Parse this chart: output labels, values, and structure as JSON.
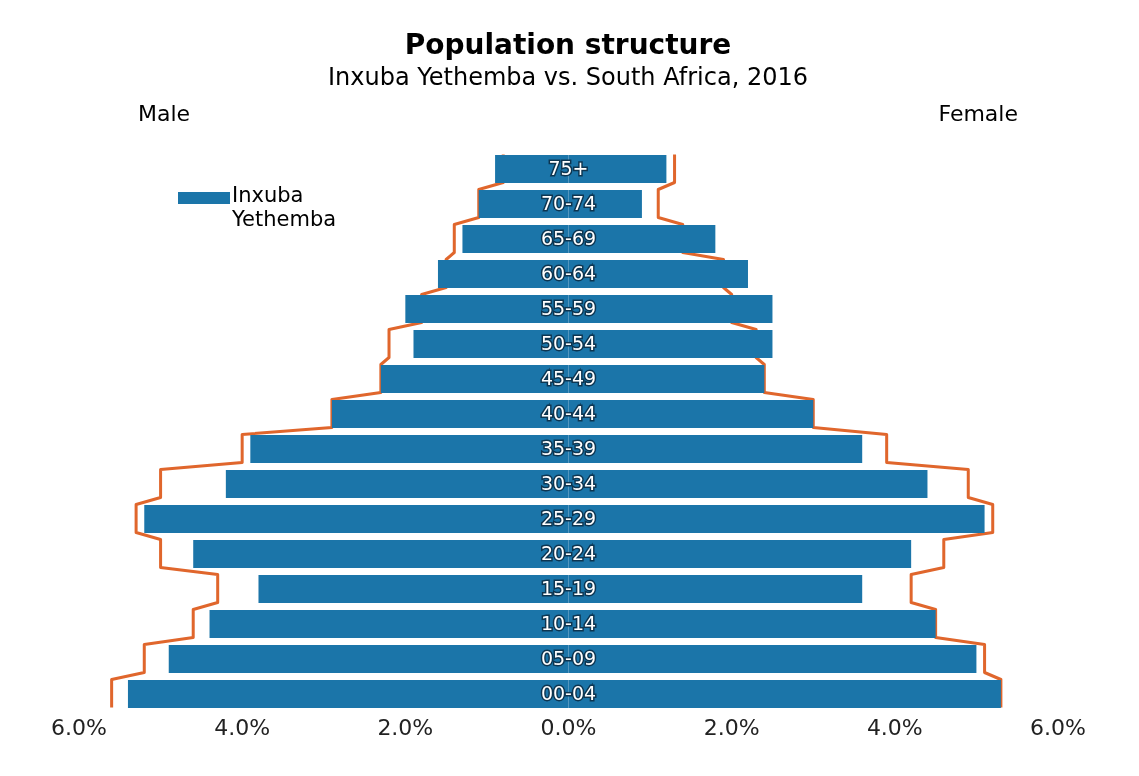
{
  "chart_data": {
    "type": "bar",
    "orientation": "horizontal",
    "stacked": true,
    "title": "Population structure",
    "subtitle": "Inxuba Yethemba vs. South Africa, 2016",
    "annotations": [
      "Male",
      "Female"
    ],
    "categories": [
      "75+",
      "70-74",
      "65-69",
      "60-64",
      "55-59",
      "50-54",
      "45-49",
      "40-44",
      "35-39",
      "30-34",
      "25-29",
      "20-24",
      "15-19",
      "10-14",
      "05-09",
      "00-04"
    ],
    "series": [
      {
        "name": "Inxuba Yethemba",
        "color": "#1b75a9",
        "values": [
          -0.9,
          -1.1,
          -1.3,
          -1.6,
          -2.0,
          -1.9,
          -2.3,
          -2.9,
          -3.9,
          -4.2,
          -5.2,
          -4.6,
          -3.8,
          -4.4,
          -4.9,
          -5.4
        ]
      },
      {
        "color": "#1b75a9",
        "values": [
          1.2,
          0.9,
          1.8,
          2.2,
          2.5,
          2.5,
          2.4,
          3.0,
          3.6,
          4.4,
          5.1,
          4.2,
          3.6,
          4.5,
          5.0,
          5.3
        ]
      },
      {
        "type": "step",
        "color": "#e0662c",
        "values": [
          -0.8,
          -1.1,
          -1.4,
          -1.5,
          -1.8,
          -2.2,
          -2.3,
          -2.9,
          -4.0,
          -5.0,
          -5.3,
          -5.0,
          -4.3,
          -4.6,
          -5.2,
          -5.6
        ]
      },
      {
        "type": "step",
        "color": "#e0662c",
        "values": [
          1.3,
          1.1,
          1.4,
          1.9,
          2.0,
          2.3,
          2.4,
          3.0,
          3.9,
          4.9,
          5.2,
          4.6,
          4.2,
          4.5,
          5.1,
          5.3
        ]
      }
    ],
    "xlim": [
      -6,
      6
    ],
    "xticks": [
      {
        "value": -6,
        "label": "6.0%"
      },
      {
        "value": -4,
        "label": "4.0%"
      },
      {
        "value": -2,
        "label": "2.0%"
      },
      {
        "value": 0,
        "label": "0.0%"
      },
      {
        "value": 2,
        "label": "2.0%"
      },
      {
        "value": 4,
        "label": "4.0%"
      },
      {
        "value": 6,
        "label": "6.0%"
      }
    ],
    "grid": false,
    "legend": "top left"
  }
}
